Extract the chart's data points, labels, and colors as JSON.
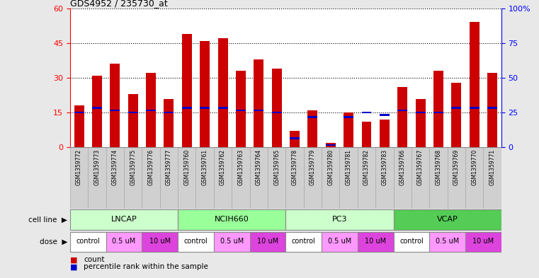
{
  "title": "GDS4952 / 235730_at",
  "samples": [
    "GSM1359772",
    "GSM1359773",
    "GSM1359774",
    "GSM1359775",
    "GSM1359776",
    "GSM1359777",
    "GSM1359760",
    "GSM1359761",
    "GSM1359762",
    "GSM1359763",
    "GSM1359764",
    "GSM1359765",
    "GSM1359778",
    "GSM1359779",
    "GSM1359780",
    "GSM1359781",
    "GSM1359782",
    "GSM1359783",
    "GSM1359766",
    "GSM1359767",
    "GSM1359768",
    "GSM1359769",
    "GSM1359770",
    "GSM1359771"
  ],
  "counts": [
    18,
    31,
    36,
    23,
    32,
    21,
    49,
    46,
    47,
    33,
    38,
    34,
    7,
    16,
    2,
    15,
    11,
    12,
    26,
    21,
    33,
    28,
    54,
    32
  ],
  "percentile_ranks": [
    15,
    17,
    16,
    15,
    16,
    15,
    17,
    17,
    17,
    16,
    16,
    15,
    4,
    13,
    1,
    13,
    15,
    14,
    16,
    15,
    15,
    17,
    17,
    17
  ],
  "cell_lines": [
    {
      "name": "LNCAP",
      "start": 0,
      "end": 6,
      "color": "#ccffcc"
    },
    {
      "name": "NCIH660",
      "start": 6,
      "end": 12,
      "color": "#99ff99"
    },
    {
      "name": "PC3",
      "start": 12,
      "end": 18,
      "color": "#ccffcc"
    },
    {
      "name": "VCAP",
      "start": 18,
      "end": 24,
      "color": "#55cc55"
    }
  ],
  "dose_groups": [
    {
      "label": "control",
      "start": 0,
      "end": 2,
      "color": "#ffffff"
    },
    {
      "label": "0.5 uM",
      "start": 2,
      "end": 4,
      "color": "#ff99ff"
    },
    {
      "label": "10 uM",
      "start": 4,
      "end": 6,
      "color": "#dd44dd"
    },
    {
      "label": "control",
      "start": 6,
      "end": 8,
      "color": "#ffffff"
    },
    {
      "label": "0.5 uM",
      "start": 8,
      "end": 10,
      "color": "#ff99ff"
    },
    {
      "label": "10 uM",
      "start": 10,
      "end": 12,
      "color": "#dd44dd"
    },
    {
      "label": "control",
      "start": 12,
      "end": 14,
      "color": "#ffffff"
    },
    {
      "label": "0.5 uM",
      "start": 14,
      "end": 16,
      "color": "#ff99ff"
    },
    {
      "label": "10 uM",
      "start": 16,
      "end": 18,
      "color": "#dd44dd"
    },
    {
      "label": "control",
      "start": 18,
      "end": 20,
      "color": "#ffffff"
    },
    {
      "label": "0.5 uM",
      "start": 20,
      "end": 22,
      "color": "#ff99ff"
    },
    {
      "label": "10 uM",
      "start": 22,
      "end": 24,
      "color": "#dd44dd"
    }
  ],
  "ylim_left": [
    0,
    60
  ],
  "ylim_right": [
    0,
    100
  ],
  "yticks_left": [
    0,
    15,
    30,
    45,
    60
  ],
  "yticks_right": [
    0,
    25,
    50,
    75,
    100
  ],
  "ytick_labels_right": [
    "0",
    "25",
    "50",
    "75",
    "100%"
  ],
  "bar_color": "#cc0000",
  "percentile_color": "#0000cc",
  "background_color": "#e8e8e8",
  "plot_bg_color": "#ffffff",
  "label_bg_color": "#d0d0d0",
  "sample_bg_color": "#d0d0d0"
}
